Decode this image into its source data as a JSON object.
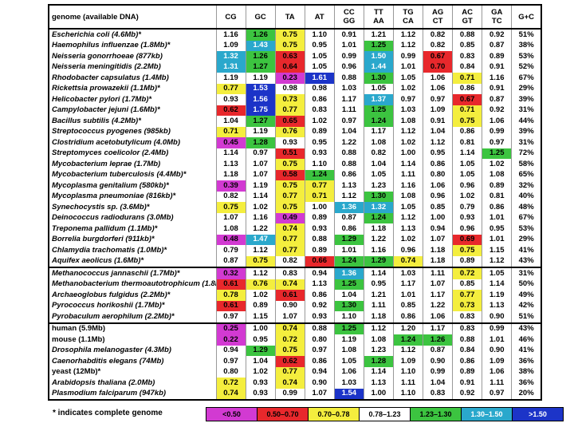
{
  "header": {
    "genome": "genome (available DNA)",
    "columns": [
      [
        "CG"
      ],
      [
        "GC"
      ],
      [
        "TA"
      ],
      [
        "AT"
      ],
      [
        "CC",
        "GG"
      ],
      [
        "TT",
        "AA"
      ],
      [
        "TG",
        "CA"
      ],
      [
        "AG",
        "CT"
      ],
      [
        "AC",
        "GT"
      ],
      [
        "GA",
        "TC"
      ],
      [
        "G+C"
      ]
    ]
  },
  "sections": [
    {
      "rows": [
        {
          "name": "Escherichia coli (4.6Mb)*",
          "values": [
            "1.16",
            "1.26",
            "0.75",
            "1.10",
            "0.91",
            "1.21",
            "1.12",
            "0.82",
            "0.88",
            "0.92"
          ],
          "gc": "51%"
        },
        {
          "name": "Haemophilus influenzae (1.8Mb)*",
          "values": [
            "1.09",
            "1.43",
            "0.75",
            "0.95",
            "1.01",
            "1.25",
            "1.12",
            "0.82",
            "0.85",
            "0.87"
          ],
          "gc": "38%"
        },
        {
          "name": "Neisseria gonorrhoeae (877kb)",
          "values": [
            "1.32",
            "1.26",
            "0.63",
            "1.05",
            "0.99",
            "1.50",
            "0.99",
            "0.67",
            "0.83",
            "0.89"
          ],
          "gc": "53%"
        },
        {
          "name": "Neisseria meningitidis (2.2Mb)",
          "values": [
            "1.31",
            "1.27",
            "0.64",
            "1.05",
            "0.96",
            "1.44",
            "1.01",
            "0.70",
            "0.84",
            "0.91"
          ],
          "gc": "52%"
        },
        {
          "name": "Rhodobacter capsulatus (1.4Mb)",
          "values": [
            "1.19",
            "1.19",
            "0.23",
            "1.61",
            "0.88",
            "1.30",
            "1.05",
            "1.06",
            "0.71",
            "1.16"
          ],
          "gc": "67%"
        },
        {
          "name": "Rickettsia prowazekii (1.1Mb)*",
          "values": [
            "0.77",
            "1.53",
            "0.98",
            "0.98",
            "1.03",
            "1.05",
            "1.02",
            "1.06",
            "0.86",
            "0.91"
          ],
          "gc": "29%"
        },
        {
          "name": "Helicobacter pylori (1.7Mb)*",
          "values": [
            "0.93",
            "1.56",
            "0.73",
            "0.86",
            "1.17",
            "1.37",
            "0.97",
            "0.97",
            "0.67",
            "0.87"
          ],
          "gc": "39%"
        },
        {
          "name": "Campylobacter jejuni (1.6Mb)*",
          "values": [
            "0.62",
            "1.75",
            "0.77",
            "0.83",
            "1.11",
            "1.25",
            "1.03",
            "1.09",
            "0.71",
            "0.92"
          ],
          "gc": "31%"
        },
        {
          "name": "Bacillus subtilis (4.2Mb)*",
          "values": [
            "1.04",
            "1.27",
            "0.65",
            "1.02",
            "0.97",
            "1.24",
            "1.08",
            "0.91",
            "0.75",
            "1.06"
          ],
          "gc": "44%"
        },
        {
          "name": "Streptococcus pyogenes (985kb)",
          "values": [
            "0.71",
            "1.19",
            "0.76",
            "0.89",
            "1.04",
            "1.17",
            "1.12",
            "1.04",
            "0.86",
            "0.99"
          ],
          "gc": "39%"
        },
        {
          "name": "Clostridium acetobutylicum (4.0Mb)",
          "values": [
            "0.45",
            "1.28",
            "0.93",
            "0.95",
            "1.22",
            "1.08",
            "1.02",
            "1.12",
            "0.81",
            "0.97"
          ],
          "gc": "31%"
        },
        {
          "name": "Streptomyces coelicolor (2.4Mb)",
          "values": [
            "1.14",
            "0.97",
            "0.51",
            "0.93",
            "0.88",
            "0.82",
            "1.00",
            "0.95",
            "1.14",
            "1.25"
          ],
          "gc": "72%"
        },
        {
          "name": "Mycobacterium leprae (1.7Mb)",
          "values": [
            "1.13",
            "1.07",
            "0.75",
            "1.10",
            "0.88",
            "1.04",
            "1.14",
            "0.86",
            "1.05",
            "1.02"
          ],
          "gc": "58%"
        },
        {
          "name": "Mycobacterium tuberculosis (4.4Mb)*",
          "values": [
            "1.18",
            "1.07",
            "0.58",
            "1.24",
            "0.86",
            "1.05",
            "1.11",
            "0.80",
            "1.05",
            "1.08"
          ],
          "gc": "65%"
        },
        {
          "name": "Mycoplasma genitalium (580kb)*",
          "values": [
            "0.39",
            "1.19",
            "0.75",
            "0.77",
            "1.13",
            "1.23",
            "1.16",
            "1.06",
            "0.96",
            "0.89"
          ],
          "gc": "32%"
        },
        {
          "name": "Mycoplasma pneumoniae (816kb)*",
          "values": [
            "0.82",
            "1.14",
            "0.77",
            "0.71",
            "1.12",
            "1.30",
            "1.08",
            "0.96",
            "1.02",
            "0.81"
          ],
          "gc": "40%"
        },
        {
          "name": "Synechocystis sp. (3.6Mb)*",
          "values": [
            "0.75",
            "1.02",
            "0.75",
            "1.00",
            "1.36",
            "1.32",
            "1.05",
            "0.85",
            "0.79",
            "0.86"
          ],
          "gc": "48%"
        },
        {
          "name": "Deinococcus radiodurans (3.0Mb)",
          "values": [
            "1.07",
            "1.16",
            "0.49",
            "0.89",
            "0.87",
            "1.24",
            "1.12",
            "1.00",
            "0.93",
            "1.01"
          ],
          "gc": "67%"
        },
        {
          "name": "Treponema pallidum (1.1Mb)*",
          "values": [
            "1.08",
            "1.22",
            "0.74",
            "0.93",
            "0.86",
            "1.18",
            "1.13",
            "0.94",
            "0.96",
            "0.95"
          ],
          "gc": "53%"
        },
        {
          "name": "Borrelia burgdorferi (911kb)*",
          "values": [
            "0.48",
            "1.47",
            "0.77",
            "0.88",
            "1.29",
            "1.22",
            "1.02",
            "1.07",
            "0.69",
            "1.01"
          ],
          "gc": "29%"
        },
        {
          "name": "Chlamydia trachomatis (1.0Mb)*",
          "values": [
            "0.79",
            "1.12",
            "0.77",
            "0.89",
            "1.01",
            "1.16",
            "0.96",
            "1.18",
            "0.75",
            "1.15"
          ],
          "gc": "41%"
        },
        {
          "name": "Aquifex aeolicus (1.6Mb)*",
          "values": [
            "0.87",
            "0.75",
            "0.82",
            "0.66",
            "1.24",
            "1.29",
            "0.74",
            "1.18",
            "0.89",
            "1.12"
          ],
          "gc": "43%"
        }
      ]
    },
    {
      "rows": [
        {
          "name": "Methanococcus jannaschii (1.7Mb)*",
          "values": [
            "0.32",
            "1.12",
            "0.83",
            "0.94",
            "1.36",
            "1.14",
            "1.03",
            "1.11",
            "0.72",
            "1.05"
          ],
          "gc": "31%"
        },
        {
          "name": "Methanobacterium thermoautotrophicum (1.8Mb)",
          "values": [
            "0.61",
            "0.76",
            "0.74",
            "1.13",
            "1.25",
            "0.95",
            "1.17",
            "1.07",
            "0.85",
            "1.14"
          ],
          "gc": "50%"
        },
        {
          "name": "Archaeoglobus fulgidus (2.2Mb)*",
          "values": [
            "0.78",
            "1.02",
            "0.61",
            "0.86",
            "1.04",
            "1.21",
            "1.01",
            "1.17",
            "0.77",
            "1.19"
          ],
          "gc": "49%"
        },
        {
          "name": "Pyrococcus horikoshii (1.7Mb)*",
          "values": [
            "0.61",
            "0.89",
            "0.90",
            "0.92",
            "1.30",
            "1.11",
            "0.85",
            "1.22",
            "0.73",
            "1.13"
          ],
          "gc": "42%"
        },
        {
          "name": "Pyrobaculum aerophilum (2.2Mb)*",
          "values": [
            "0.97",
            "1.15",
            "1.07",
            "0.93",
            "1.10",
            "1.18",
            "0.86",
            "1.06",
            "0.83",
            "0.90"
          ],
          "gc": "51%"
        }
      ]
    },
    {
      "rows": [
        {
          "name": "human (5.9Mb)",
          "style": "plain",
          "values": [
            "0.25",
            "1.00",
            "0.74",
            "0.88",
            "1.25",
            "1.12",
            "1.20",
            "1.17",
            "0.83",
            "0.99"
          ],
          "gc": "43%"
        },
        {
          "name": "mouse (1.1Mb)",
          "style": "plain",
          "values": [
            "0.22",
            "0.95",
            "0.72",
            "0.80",
            "1.19",
            "1.08",
            "1.24",
            "1.26",
            "0.88",
            "1.01"
          ],
          "gc": "46%"
        },
        {
          "name": "Drosophila melanogaster (4.3Mb)",
          "values": [
            "0.94",
            "1.29",
            "0.75",
            "0.97",
            "1.08",
            "1.23",
            "1.12",
            "0.87",
            "0.84",
            "0.90"
          ],
          "gc": "41%"
        },
        {
          "name": "Caenorhabditis elegans (74Mb)",
          "values": [
            "0.97",
            "1.04",
            "0.62",
            "0.86",
            "1.05",
            "1.28",
            "1.09",
            "0.90",
            "0.86",
            "1.09"
          ],
          "gc": "36%"
        },
        {
          "name": "yeast (12Mb)*",
          "style": "plain",
          "values": [
            "0.80",
            "1.02",
            "0.77",
            "0.94",
            "1.06",
            "1.14",
            "1.10",
            "0.99",
            "0.89",
            "1.06"
          ],
          "gc": "38%"
        },
        {
          "name": "Arabidopsis thaliana (2.0Mb)",
          "values": [
            "0.72",
            "0.93",
            "0.74",
            "0.90",
            "1.03",
            "1.13",
            "1.11",
            "1.04",
            "0.91",
            "1.11"
          ],
          "gc": "36%"
        },
        {
          "name": "Plasmodium falciparum (947kb)",
          "values": [
            "0.74",
            "0.93",
            "0.99",
            "1.07",
            "1.54",
            "1.00",
            "1.10",
            "0.83",
            "0.92",
            "0.97"
          ],
          "gc": "20%"
        }
      ]
    }
  ],
  "footnote": "* indicates complete genome",
  "legend": [
    {
      "label": "<0.50",
      "max": 0.5,
      "color": "#d23ad2"
    },
    {
      "label": "0.50–0.70",
      "min": 0.5,
      "max": 0.7,
      "color": "#e8282c"
    },
    {
      "label": "0.70–0.78",
      "min": 0.7,
      "max": 0.78,
      "color": "#f4ee3e"
    },
    {
      "label": "0.78–1.23",
      "min": 0.78,
      "max": 1.23,
      "color": "#ffffff"
    },
    {
      "label": "1.23–1.30",
      "min": 1.23,
      "max": 1.3,
      "color": "#3cc440"
    },
    {
      "label": "1.30–1.50",
      "min": 1.3,
      "max": 1.5,
      "color": "#2aa8cc"
    },
    {
      "label": ">1.50",
      "min": 1.5,
      "color": "#1c34c8"
    }
  ]
}
